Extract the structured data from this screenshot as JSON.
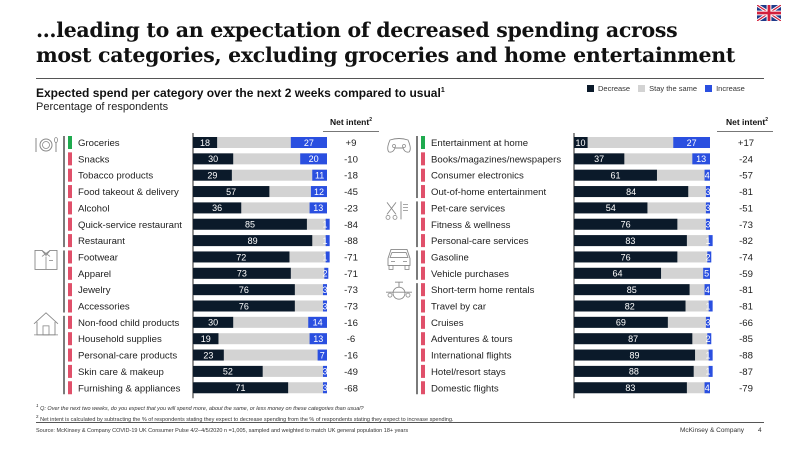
{
  "title": "…leading to an expectation of decreased spending across most categories, excluding groceries and home entertainment",
  "subtitle": "Expected spend per category over the next 2 weeks compared to usual",
  "subtitle_footnote": "1",
  "unit_label": "Percentage of respondents",
  "net_intent_header": "Net intent",
  "net_intent_footnote": "2",
  "colors": {
    "decrease": "#0b1a2a",
    "same": "#d3d3d3",
    "increase": "#2a4fe0",
    "positive_marker": "#1faa4e",
    "negative_marker": "#e0506a",
    "icon": "#888888"
  },
  "legend": [
    {
      "key": "decrease",
      "label": "Decrease"
    },
    {
      "key": "same",
      "label": "Stay the same"
    },
    {
      "key": "increase",
      "label": "Increase"
    }
  ],
  "footnotes": [
    "Q: Over the next two weeks, do you expect that you will spend more, about the same, or less money on these categories than usual?",
    "Net intent is calculated by subtracting the % of respondents stating they expect to decrease spending from the % of respondents stating they expect to increase spending."
  ],
  "source": "Source: McKinsey & Company COVID-19 UK Consumer Pulse 4/2–4/5/2020 n =1,005, sampled and weighted to match UK general population 18+ years",
  "brand": "McKinsey & Company",
  "page_number": "4",
  "flag": "uk-flag",
  "chart_data": [
    {
      "type": "bar",
      "orientation": "horizontal",
      "stacked": true,
      "title": "Expected spend per category over the next 2 weeks compared to usual (left panel)",
      "xlabel": "Percentage of respondents",
      "xlim": [
        0,
        100
      ],
      "groups": [
        {
          "icon": "dining-icon",
          "start": 0,
          "end": 6
        },
        {
          "icon": "clothing-icon",
          "start": 7,
          "end": 10
        },
        {
          "icon": "house-icon",
          "start": 11,
          "end": 15
        }
      ],
      "categories": [
        "Groceries",
        "Snacks",
        "Tobacco products",
        "Food takeout & delivery",
        "Alcohol",
        "Quick-service restaurant",
        "Restaurant",
        "Footwear",
        "Apparel",
        "Jewelry",
        "Accessories",
        "Non-food child products",
        "Household supplies",
        "Personal-care products",
        "Skin care & makeup",
        "Furnishing & appliances"
      ],
      "series": [
        {
          "name": "Decrease",
          "values": [
            18,
            30,
            29,
            57,
            36,
            85,
            89,
            72,
            73,
            76,
            76,
            30,
            19,
            23,
            52,
            71
          ]
        },
        {
          "name": "Increase",
          "values": [
            27,
            20,
            11,
            12,
            13,
            1,
            1,
            1,
            2,
            3,
            3,
            14,
            13,
            7,
            3,
            3
          ]
        }
      ],
      "net_intent": [
        "+9",
        "-10",
        "-18",
        "-45",
        "-23",
        "-84",
        "-88",
        "-71",
        "-71",
        "-73",
        "-73",
        "-16",
        "-6",
        "-16",
        "-49",
        "-68"
      ]
    },
    {
      "type": "bar",
      "orientation": "horizontal",
      "stacked": true,
      "title": "Expected spend per category over the next 2 weeks compared to usual (right panel)",
      "xlabel": "Percentage of respondents",
      "xlim": [
        0,
        100
      ],
      "groups": [
        {
          "icon": "gamepad-icon",
          "start": 0,
          "end": 3
        },
        {
          "icon": "services-icon",
          "start": 4,
          "end": 6
        },
        {
          "icon": "car-icon",
          "start": 7,
          "end": 8
        },
        {
          "icon": "airplane-icon",
          "start": 9,
          "end": 15
        }
      ],
      "categories": [
        "Entertainment at home",
        "Books/magazines/newspapers",
        "Consumer electronics",
        "Out-of-home entertainment",
        "Pet-care services",
        "Fitness & wellness",
        "Personal-care services",
        "Gasoline",
        "Vehicle purchases",
        "Short-term home rentals",
        "Travel by car",
        "Cruises",
        "Adventures & tours",
        "International flights",
        "Hotel/resort stays",
        "Domestic flights"
      ],
      "series": [
        {
          "name": "Decrease",
          "values": [
            10,
            37,
            61,
            84,
            54,
            76,
            83,
            76,
            64,
            85,
            82,
            69,
            87,
            89,
            88,
            83
          ]
        },
        {
          "name": "Increase",
          "values": [
            27,
            13,
            4,
            3,
            3,
            3,
            1,
            2,
            5,
            4,
            1,
            3,
            2,
            1,
            1,
            4
          ]
        }
      ],
      "net_intent": [
        "+17",
        "-24",
        "-57",
        "-81",
        "-51",
        "-73",
        "-82",
        "-74",
        "-59",
        "-81",
        "-81",
        "-66",
        "-85",
        "-88",
        "-87",
        "-79"
      ]
    }
  ]
}
